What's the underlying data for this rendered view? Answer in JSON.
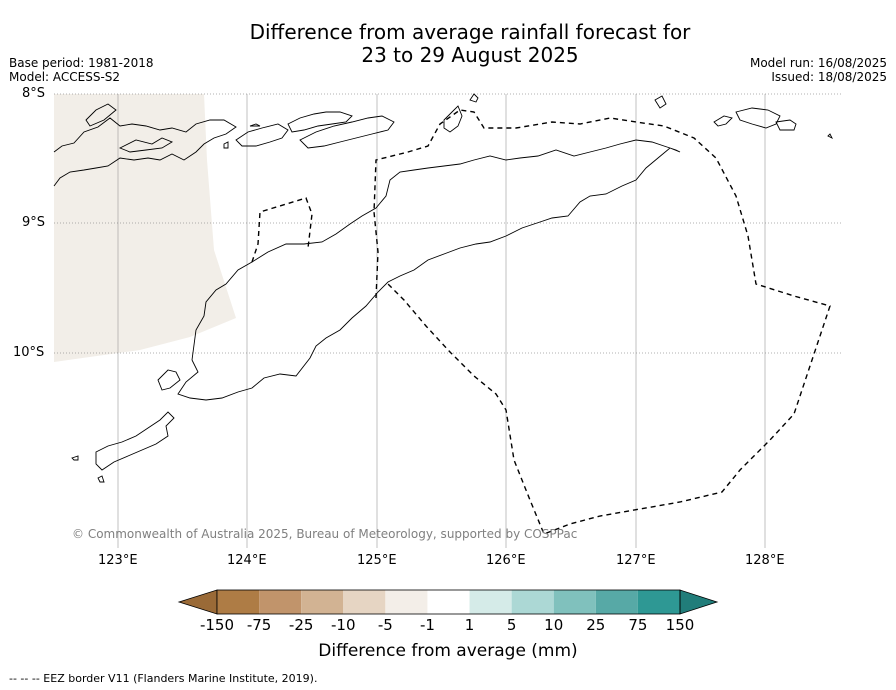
{
  "title": {
    "line1": "Difference from average rainfall forecast for",
    "line2": "23 to 29 August 2025"
  },
  "meta": {
    "base_period": "Base period: 1981-2018",
    "model": "Model: ACCESS-S2",
    "model_run": "Model run: 16/08/2025",
    "issued": "Issued: 18/08/2025"
  },
  "map": {
    "latitude_labels": [
      "8°S",
      "9°S",
      "10°S"
    ],
    "longitude_labels": [
      "123°E",
      "124°E",
      "125°E",
      "126°E",
      "127°E",
      "128°E"
    ],
    "copyright": "© Commonwealth of Australia 2025, Bureau of Meteorology, supported by COSPPac",
    "land_fill_color": "#f2eee8"
  },
  "colorbar": {
    "labels": [
      "-150",
      "-75",
      "-25",
      "-10",
      "-5",
      "-1",
      "1",
      "5",
      "10",
      "25",
      "75",
      "150"
    ],
    "colors": [
      "#9a6a37",
      "#ae7c45",
      "#c1946b",
      "#d2b393",
      "#e6d5c3",
      "#f3eee8",
      "#ffffff",
      "#d5ebe8",
      "#acd8d5",
      "#80c1bd",
      "#57a9a6",
      "#2e9894",
      "#217d7a"
    ],
    "title": "Difference from average (mm)"
  },
  "legend": {
    "eez": "--  --  -- EEZ border V11 (Flanders Marine Institute, 2019)."
  }
}
